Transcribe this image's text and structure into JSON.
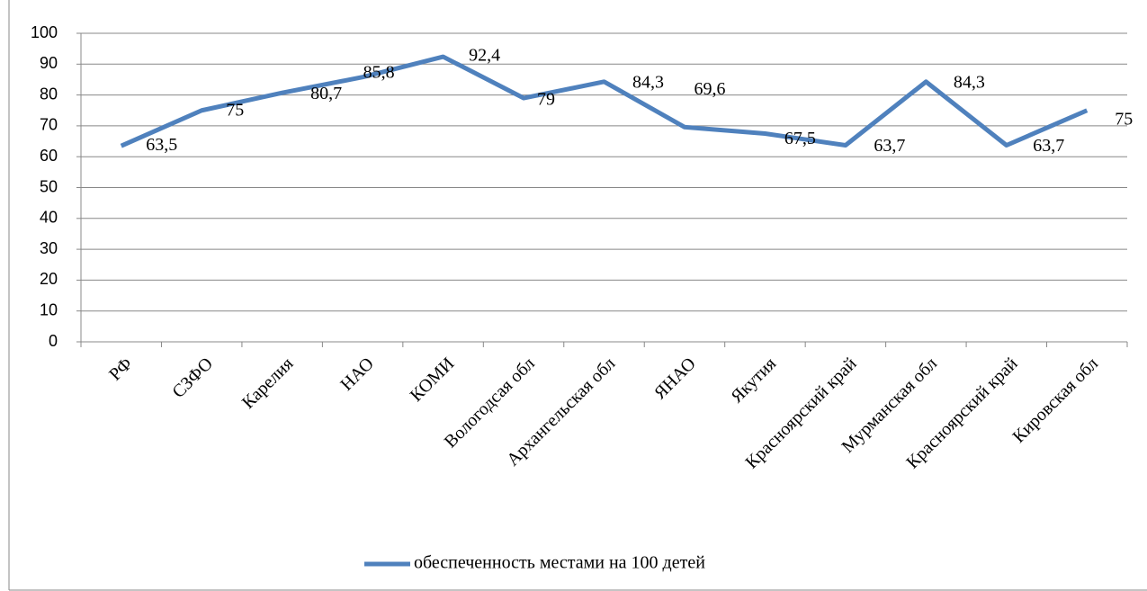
{
  "chart_data": {
    "type": "line",
    "categories": [
      "РФ",
      "СЗФО",
      "Карелия",
      "НАО",
      "КОМИ",
      "Вологодсая обл",
      "Архангельская обл",
      "ЯНАО",
      "Якутия",
      "Красноярский край",
      "Мурманская обл",
      "Красноярский край",
      "Кировская обл"
    ],
    "series": [
      {
        "name": "обеспеченность местами на 100 детей",
        "color": "#4f81bd",
        "values": [
          63.5,
          75,
          80.7,
          85.8,
          92.4,
          79,
          84.3,
          69.6,
          67.5,
          63.7,
          84.3,
          63.7,
          75
        ],
        "value_labels": [
          "63,5",
          "75",
          "80,7",
          "85,8",
          "92,4",
          "79",
          "84,3",
          "69,6",
          "67,5",
          "63,7",
          "84,3",
          "63,7",
          "75"
        ]
      }
    ],
    "ylim": [
      0,
      100
    ],
    "yticks": [
      0,
      10,
      20,
      30,
      40,
      50,
      60,
      70,
      80,
      90,
      100
    ],
    "grid": true,
    "legend": "bottom"
  }
}
